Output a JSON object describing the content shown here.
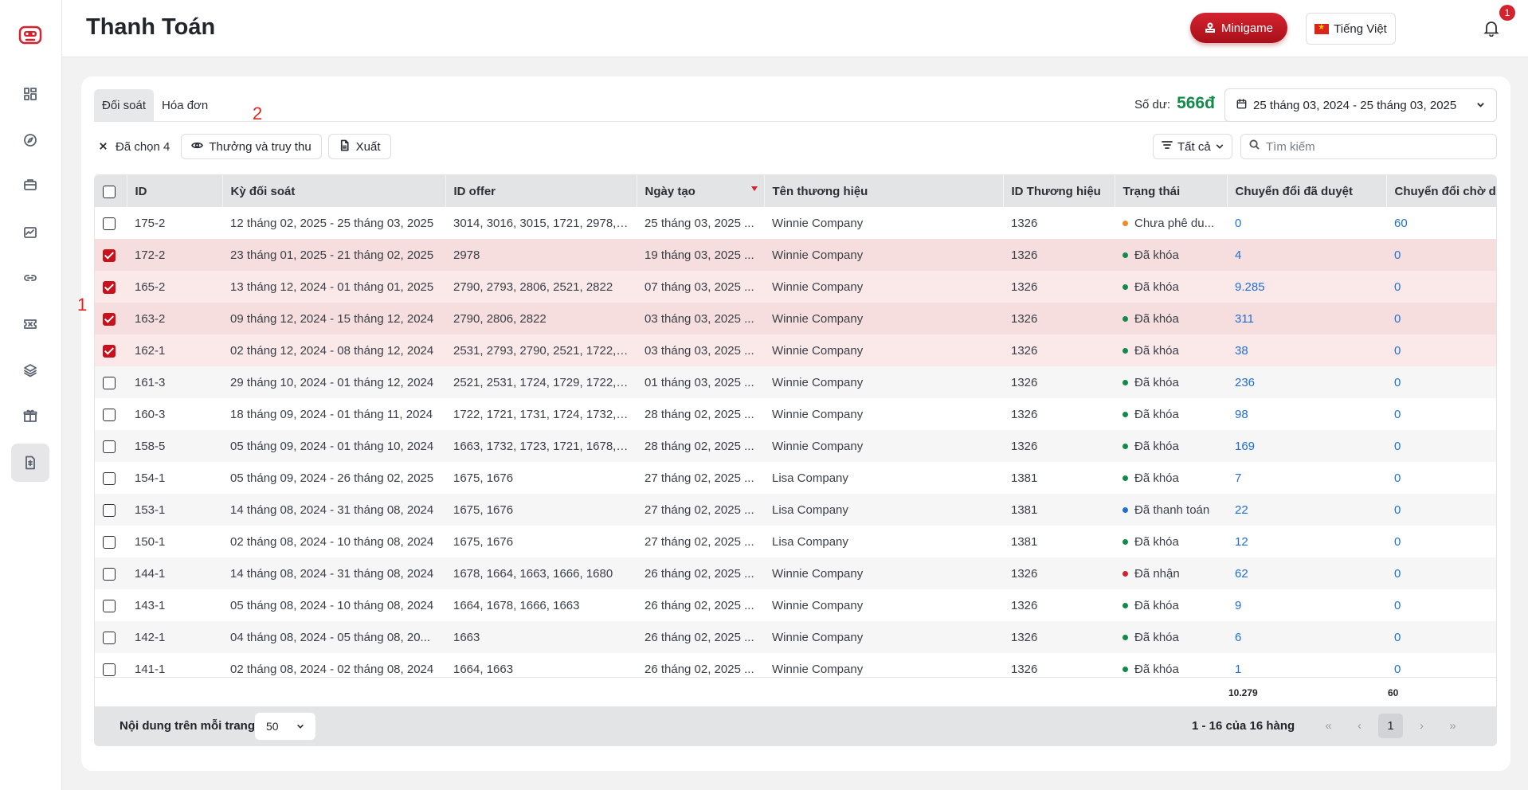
{
  "header": {
    "title": "Thanh Toán",
    "minigame_label": "Minigame",
    "language_label": "Tiếng Việt",
    "notification_count": "1"
  },
  "tabs": [
    {
      "label": "Đối soát",
      "active": true
    },
    {
      "label": "Hóa đơn",
      "active": false
    }
  ],
  "annotations": {
    "one": "1",
    "two": "2"
  },
  "balance": {
    "label": "Số dư:",
    "value": "566đ"
  },
  "date_range": "25 tháng 03, 2024 - 25 tháng 03, 2025",
  "toolbar": {
    "selected_label": "Đã chọn 4",
    "reward_button": "Thưởng và truy thu",
    "export_button": "Xuất",
    "filter_label": "Tất cả",
    "search_placeholder": "Tìm kiếm"
  },
  "columns": [
    "ID",
    "Kỳ đối soát",
    "ID offer",
    "Ngày tạo",
    "Tên thương hiệu",
    "ID Thương hiệu",
    "Trạng thái",
    "Chuyển đổi đã duyệt",
    "Chuyển đổi chờ duyệt"
  ],
  "status_colors": {
    "orange": "#f08a24",
    "green": "#128a4a",
    "blue": "#1f6fd1",
    "red": "#d3232f"
  },
  "rows": [
    {
      "checked": false,
      "id": "175-2",
      "period": "12 tháng 02, 2025 - 25 tháng 03, 2025",
      "offer": "3014, 3016, 3015, 1721, 2978, 2...",
      "created": "25 tháng 03, 2025 ...",
      "brand": "Winnie Company",
      "brand_id": "1326",
      "status": "Chưa phê du...",
      "status_color": "orange",
      "approved": "0",
      "pending": "60"
    },
    {
      "checked": true,
      "id": "172-2",
      "period": "23 tháng 01, 2025 - 21 tháng 02, 2025",
      "offer": "2978",
      "created": "19 tháng 03, 2025 ...",
      "brand": "Winnie Company",
      "brand_id": "1326",
      "status": "Đã khóa",
      "status_color": "green",
      "approved": "4",
      "pending": "0"
    },
    {
      "checked": true,
      "id": "165-2",
      "period": "13 tháng 12, 2024 - 01 tháng 01, 2025",
      "offer": "2790, 2793, 2806, 2521, 2822",
      "created": "07 tháng 03, 2025 ...",
      "brand": "Winnie Company",
      "brand_id": "1326",
      "status": "Đã khóa",
      "status_color": "green",
      "approved": "9.285",
      "pending": "0"
    },
    {
      "checked": true,
      "id": "163-2",
      "period": "09 tháng 12, 2024 - 15 tháng 12, 2024",
      "offer": "2790, 2806, 2822",
      "created": "03 tháng 03, 2025 ...",
      "brand": "Winnie Company",
      "brand_id": "1326",
      "status": "Đã khóa",
      "status_color": "green",
      "approved": "311",
      "pending": "0"
    },
    {
      "checked": true,
      "id": "162-1",
      "period": "02 tháng 12, 2024 - 08 tháng 12, 2024",
      "offer": "2531, 2793, 2790, 2521, 1722, 1...",
      "created": "03 tháng 03, 2025 ...",
      "brand": "Winnie Company",
      "brand_id": "1326",
      "status": "Đã khóa",
      "status_color": "green",
      "approved": "38",
      "pending": "0"
    },
    {
      "checked": false,
      "id": "161-3",
      "period": "29 tháng 10, 2024 - 01 tháng 12, 2024",
      "offer": "2521, 2531, 1724, 1729, 1722, 1...",
      "created": "01 tháng 03, 2025 ...",
      "brand": "Winnie Company",
      "brand_id": "1326",
      "status": "Đã khóa",
      "status_color": "green",
      "approved": "236",
      "pending": "0"
    },
    {
      "checked": false,
      "id": "160-3",
      "period": "18 tháng 09, 2024 - 01 tháng 11, 2024",
      "offer": "1722, 1721, 1731, 1724, 1732, 17...",
      "created": "28 tháng 02, 2025 ...",
      "brand": "Winnie Company",
      "brand_id": "1326",
      "status": "Đã khóa",
      "status_color": "green",
      "approved": "98",
      "pending": "0"
    },
    {
      "checked": false,
      "id": "158-5",
      "period": "05 tháng 09, 2024 - 01 tháng 10, 2024",
      "offer": "1663, 1732, 1723, 1721, 1678, 1...",
      "created": "28 tháng 02, 2025 ...",
      "brand": "Winnie Company",
      "brand_id": "1326",
      "status": "Đã khóa",
      "status_color": "green",
      "approved": "169",
      "pending": "0"
    },
    {
      "checked": false,
      "id": "154-1",
      "period": "05 tháng 09, 2024 - 26 tháng 02, 2025",
      "offer": "1675, 1676",
      "created": "27 tháng 02, 2025 ...",
      "brand": "Lisa Company",
      "brand_id": "1381",
      "status": "Đã khóa",
      "status_color": "green",
      "approved": "7",
      "pending": "0"
    },
    {
      "checked": false,
      "id": "153-1",
      "period": "14 tháng 08, 2024 - 31 tháng 08, 2024",
      "offer": "1675, 1676",
      "created": "27 tháng 02, 2025 ...",
      "brand": "Lisa Company",
      "brand_id": "1381",
      "status": "Đã thanh toán",
      "status_color": "blue",
      "approved": "22",
      "pending": "0"
    },
    {
      "checked": false,
      "id": "150-1",
      "period": "02 tháng 08, 2024 - 10 tháng 08, 2024",
      "offer": "1675, 1676",
      "created": "27 tháng 02, 2025 ...",
      "brand": "Lisa Company",
      "brand_id": "1381",
      "status": "Đã khóa",
      "status_color": "green",
      "approved": "12",
      "pending": "0"
    },
    {
      "checked": false,
      "id": "144-1",
      "period": "14 tháng 08, 2024 - 31 tháng 08, 2024",
      "offer": "1678, 1664, 1663, 1666, 1680",
      "created": "26 tháng 02, 2025 ...",
      "brand": "Winnie Company",
      "brand_id": "1326",
      "status": "Đã nhận",
      "status_color": "red",
      "approved": "62",
      "pending": "0"
    },
    {
      "checked": false,
      "id": "143-1",
      "period": "05 tháng 08, 2024 - 10 tháng 08, 2024",
      "offer": "1664, 1678, 1666, 1663",
      "created": "26 tháng 02, 2025 ...",
      "brand": "Winnie Company",
      "brand_id": "1326",
      "status": "Đã khóa",
      "status_color": "green",
      "approved": "9",
      "pending": "0"
    },
    {
      "checked": false,
      "id": "142-1",
      "period": "04 tháng 08, 2024 - 05 tháng 08, 20...",
      "offer": "1663",
      "created": "26 tháng 02, 2025 ...",
      "brand": "Winnie Company",
      "brand_id": "1326",
      "status": "Đã khóa",
      "status_color": "green",
      "approved": "6",
      "pending": "0"
    },
    {
      "checked": false,
      "id": "141-1",
      "period": "02 tháng 08, 2024 - 02 tháng 08, 2024",
      "offer": "1664, 1663",
      "created": "26 tháng 02, 2025 ...",
      "brand": "Winnie Company",
      "brand_id": "1326",
      "status": "Đã khóa",
      "status_color": "green",
      "approved": "1",
      "pending": "0"
    }
  ],
  "totals": {
    "approved": "10.279",
    "pending": "60"
  },
  "footer": {
    "per_page_label": "Nội dung trên mỗi trang:",
    "per_page_value": "50",
    "rows_info": "1 - 16 của 16 hàng",
    "current_page": "1"
  }
}
